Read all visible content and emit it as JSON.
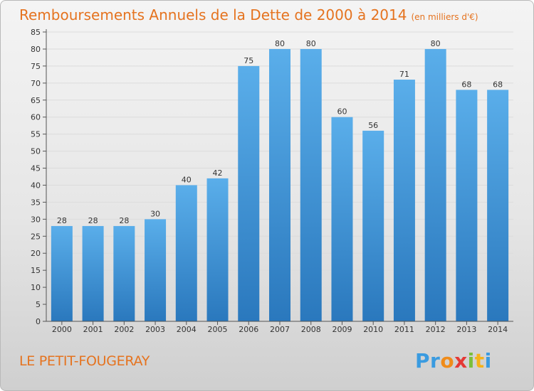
{
  "title": "Remboursements Annuels de la Dette de 2000 à 2014",
  "unit": "(en milliers d'€)",
  "town": "LE PETIT-FOUGERAY",
  "logo": {
    "letters": [
      "P",
      "r",
      "o",
      "x",
      "i",
      "t",
      "i"
    ],
    "colors": [
      "#3a9be0",
      "#3a9be0",
      "#f08c1a",
      "#e53935",
      "#7bbf3a",
      "#f5b21a",
      "#3a9be0"
    ]
  },
  "colors": {
    "accent": "#e5731f",
    "bar_top": "#5aaeea",
    "bar_bottom": "#2a78bd",
    "axis": "#555555",
    "grid": "#dcdcdc"
  },
  "chart_data": {
    "type": "bar",
    "categories": [
      "2000",
      "2001",
      "2002",
      "2003",
      "2004",
      "2005",
      "2006",
      "2007",
      "2008",
      "2009",
      "2010",
      "2011",
      "2012",
      "2013",
      "2014"
    ],
    "values": [
      28,
      28,
      28,
      30,
      40,
      42,
      75,
      80,
      80,
      60,
      56,
      71,
      80,
      68,
      68
    ],
    "ylim": [
      0,
      85
    ],
    "yticks": [
      0,
      5,
      10,
      15,
      20,
      25,
      30,
      35,
      40,
      45,
      50,
      55,
      60,
      65,
      70,
      75,
      80,
      85
    ],
    "grid": true,
    "data_labels": true
  }
}
